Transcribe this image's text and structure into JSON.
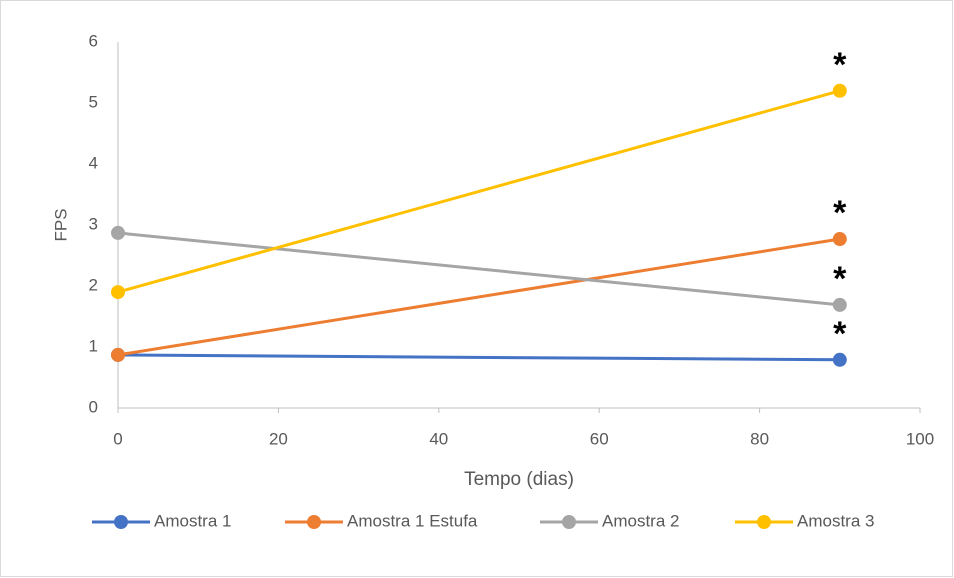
{
  "chart_data": {
    "type": "line",
    "x_label": "Tempo (dias)",
    "y_label": "FPS",
    "xlim": [
      0,
      100
    ],
    "xticks": [
      0,
      20,
      40,
      60,
      80,
      100
    ],
    "ylim": [
      0,
      6
    ],
    "yticks": [
      0,
      1,
      2,
      3,
      4,
      5,
      6
    ],
    "grid": false,
    "legend": "bottom",
    "series": [
      {
        "name": "Amostra 1",
        "color": "#4472c4",
        "x": [
          0,
          90
        ],
        "values": [
          0.87,
          0.79
        ],
        "point_labels": [
          null,
          "*"
        ]
      },
      {
        "name": "Amostra 1 Estufa",
        "color": "#ed7d31",
        "x": [
          0,
          90
        ],
        "values": [
          0.87,
          2.77
        ],
        "point_labels": [
          null,
          "*"
        ]
      },
      {
        "name": "Amostra 2",
        "color": "#a5a5a5",
        "x": [
          0,
          90
        ],
        "values": [
          2.87,
          1.69
        ],
        "point_labels": [
          null,
          "*"
        ]
      },
      {
        "name": "Amostra 3",
        "color": "#ffc000",
        "x": [
          0,
          90
        ],
        "values": [
          1.9,
          5.2
        ],
        "point_labels": [
          null,
          "*"
        ]
      }
    ]
  }
}
